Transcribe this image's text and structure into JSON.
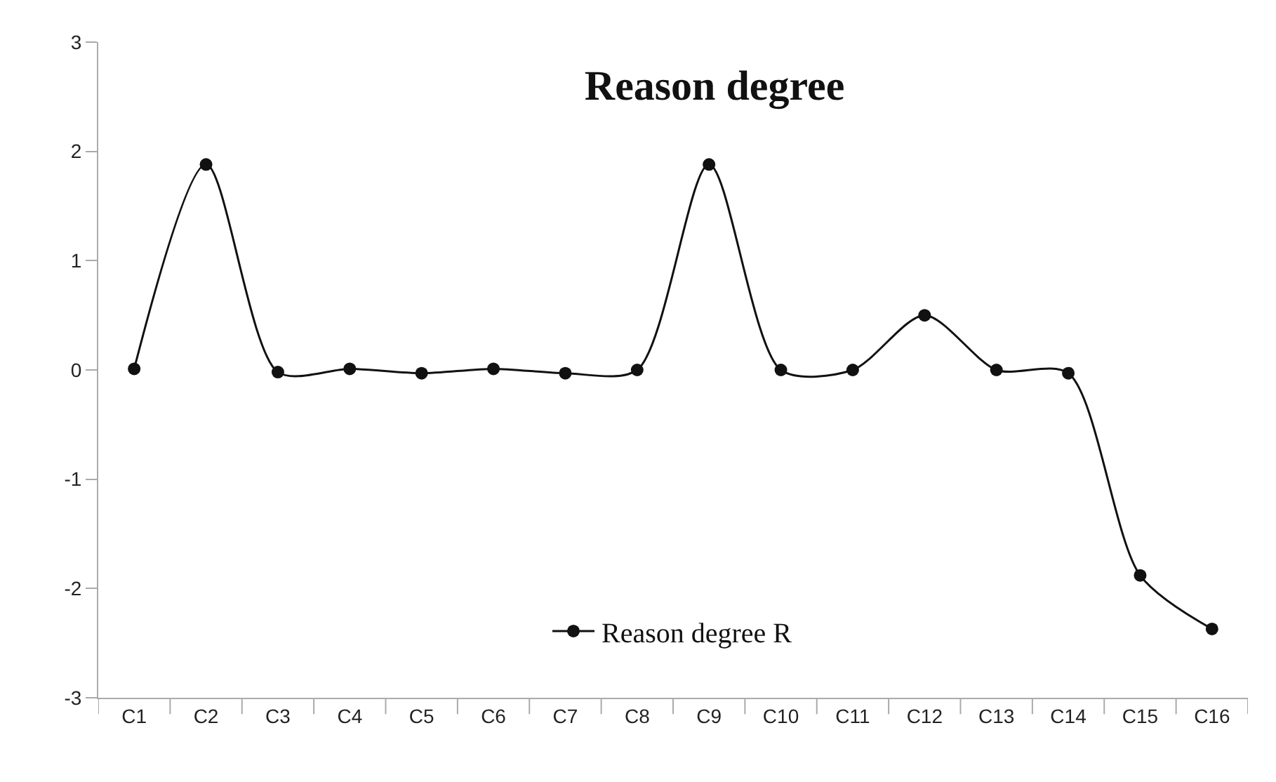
{
  "chart_data": {
    "type": "line",
    "title": "Reason degree",
    "categories": [
      "C1",
      "C2",
      "C3",
      "C4",
      "C5",
      "C6",
      "C7",
      "C8",
      "C9",
      "C10",
      "C11",
      "C12",
      "C13",
      "C14",
      "C15",
      "C16"
    ],
    "series": [
      {
        "name": "Reason degree R",
        "color": "#111111",
        "values": [
          0.01,
          1.88,
          -0.02,
          0.01,
          -0.03,
          0.01,
          -0.03,
          0.0,
          1.88,
          0.0,
          0.0,
          0.5,
          0.0,
          -0.03,
          -1.88,
          -2.37
        ]
      }
    ],
    "ylim": [
      -3,
      3
    ],
    "yticks": [
      -3,
      -2,
      -1,
      0,
      1,
      2,
      3
    ],
    "legend": "bottom",
    "marker": "circle",
    "line_style": "solid"
  }
}
